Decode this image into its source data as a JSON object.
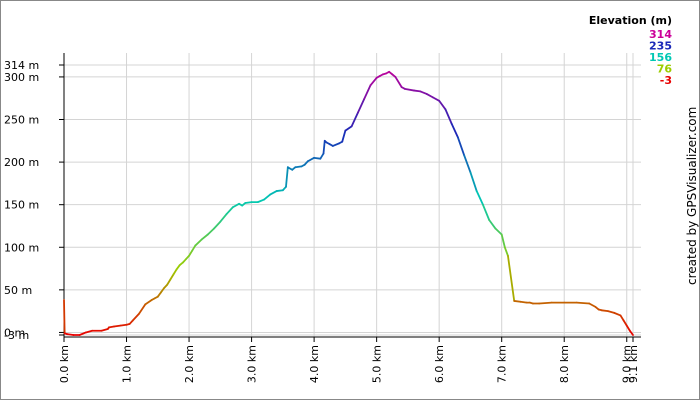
{
  "chart_data": {
    "type": "line",
    "title": "",
    "xlabel": "",
    "ylabel": "",
    "xlim": [
      0,
      9.1
    ],
    "ylim": [
      -3,
      314
    ],
    "grid": true,
    "x_ticks": [
      {
        "value": 0,
        "label": "0.0 km"
      },
      {
        "value": 1,
        "label": "1.0 km"
      },
      {
        "value": 2,
        "label": "2.0 km"
      },
      {
        "value": 3,
        "label": "3.0 km"
      },
      {
        "value": 4,
        "label": "4.0 km"
      },
      {
        "value": 5,
        "label": "5.0 km"
      },
      {
        "value": 6,
        "label": "6.0 km"
      },
      {
        "value": 7,
        "label": "7.0 km"
      },
      {
        "value": 8,
        "label": "8.0 km"
      },
      {
        "value": 9,
        "label": "9.0 km"
      },
      {
        "value": 9.1,
        "label": "9.1 km"
      }
    ],
    "y_ticks": [
      {
        "value": 314,
        "label": "314 m"
      },
      {
        "value": 300,
        "label": "300 m"
      },
      {
        "value": 250,
        "label": "250 m"
      },
      {
        "value": 200,
        "label": "200 m"
      },
      {
        "value": 150,
        "label": "150 m"
      },
      {
        "value": 100,
        "label": "100 m"
      },
      {
        "value": 50,
        "label": "50 m"
      },
      {
        "value": 0,
        "label": "0 m"
      },
      {
        "value": -3,
        "label": "-3 m"
      }
    ],
    "legend": {
      "title": "Elevation (m)",
      "placement": "top-right",
      "entries": [
        {
          "value": 314,
          "label": "314",
          "color": "#cc0099"
        },
        {
          "value": 235,
          "label": "235",
          "color": "#1a28b8"
        },
        {
          "value": 156,
          "label": "156",
          "color": "#00c8b4"
        },
        {
          "value": 76,
          "label": "76",
          "color": "#9ccc00"
        },
        {
          "value": -3,
          "label": "-3",
          "color": "#e80000"
        }
      ]
    },
    "series": [
      {
        "x": [
          0.0,
          0.01,
          0.05,
          0.15,
          0.25,
          0.35,
          0.45,
          0.6,
          0.7,
          0.72,
          0.8,
          0.9,
          1.0,
          1.05,
          1.1,
          1.2,
          1.3,
          1.4,
          1.45,
          1.5,
          1.55,
          1.6,
          1.65,
          1.7,
          1.75,
          1.8,
          1.85,
          1.9,
          1.95,
          2.0,
          2.05,
          2.1,
          2.2,
          2.3,
          2.4,
          2.5,
          2.6,
          2.7,
          2.8,
          2.85,
          2.9,
          3.0,
          3.1,
          3.2,
          3.3,
          3.4,
          3.5,
          3.55,
          3.58,
          3.6,
          3.65,
          3.7,
          3.8,
          3.85,
          3.9,
          4.0,
          4.1,
          4.15,
          4.17,
          4.2,
          4.25,
          4.3,
          4.4,
          4.45,
          4.5,
          4.6,
          4.7,
          4.8,
          4.9,
          5.0,
          5.05,
          5.1,
          5.15,
          5.2,
          5.25,
          5.3,
          5.4,
          5.45,
          5.6,
          5.7,
          5.8,
          5.9,
          6.0,
          6.1,
          6.2,
          6.3,
          6.4,
          6.5,
          6.6,
          6.7,
          6.8,
          6.9,
          7.0,
          7.05,
          7.1,
          7.2,
          7.3,
          7.4,
          7.45,
          7.5,
          7.6,
          7.8,
          8.0,
          8.2,
          8.4,
          8.5,
          8.55,
          8.6,
          8.7,
          8.8,
          8.9,
          8.95,
          9.0,
          9.05,
          9.1
        ],
        "y": [
          38,
          -1,
          -2,
          -3,
          -3,
          0,
          2,
          2,
          4,
          6,
          7,
          8,
          9,
          10,
          14,
          22,
          33,
          38,
          40,
          42,
          47,
          52,
          56,
          62,
          68,
          74,
          79,
          82,
          86,
          90,
          96,
          102,
          109,
          115,
          122,
          130,
          139,
          147,
          151,
          149,
          152,
          153,
          153,
          156,
          162,
          166,
          167,
          171,
          194,
          193,
          191,
          194,
          195,
          197,
          201,
          205,
          204,
          210,
          225,
          223,
          221,
          219,
          222,
          224,
          237,
          242,
          258,
          274,
          290,
          299,
          301,
          303,
          304,
          306,
          303,
          300,
          288,
          286,
          284,
          283,
          280,
          276,
          272,
          262,
          245,
          229,
          208,
          188,
          166,
          150,
          132,
          122,
          115,
          100,
          90,
          37,
          36,
          35,
          35,
          34,
          34,
          35,
          35,
          35,
          34,
          30,
          27,
          26,
          25,
          23,
          20,
          14,
          8,
          2,
          -3
        ]
      }
    ]
  },
  "credit": "created by GPSVisualizer.com"
}
